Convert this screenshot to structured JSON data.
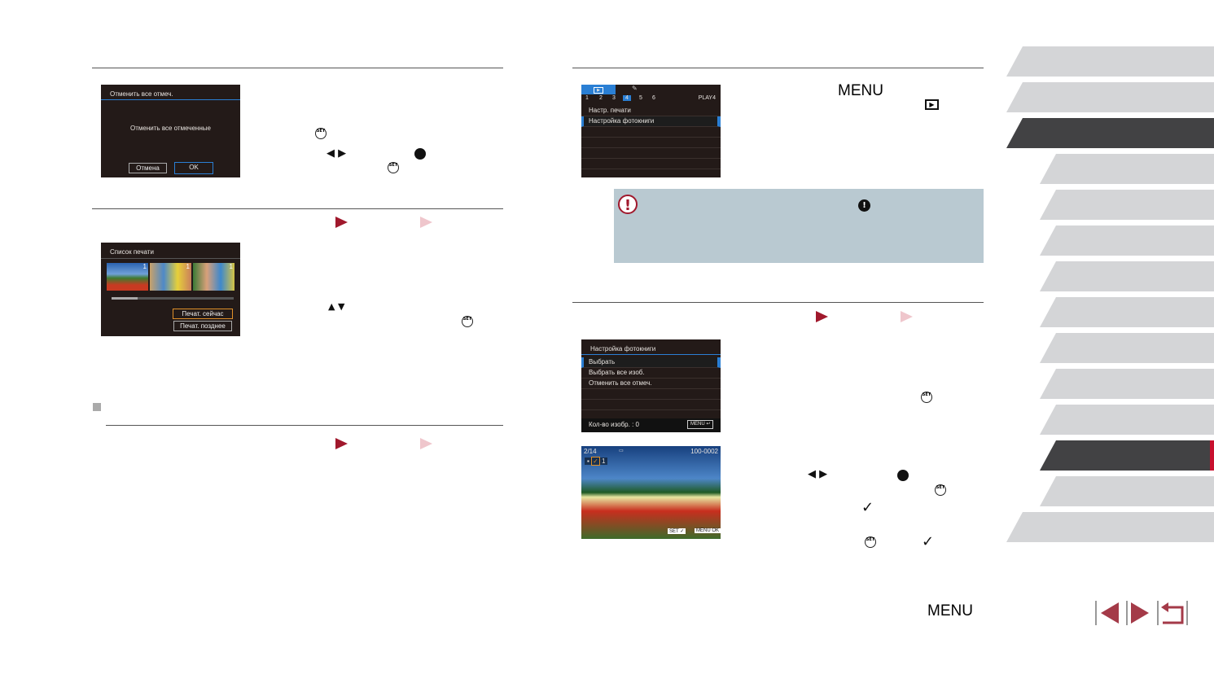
{
  "colors": {
    "accent": "#a0182c",
    "pale_accent": "#efc6cc",
    "note_bg": "#b9c9d1",
    "tab_dark": "#424244",
    "tab_light": "#d4d5d7",
    "screen_bg": "#231a18",
    "screen_highlight": "#2a7fd4"
  },
  "screen1": {
    "title": "Отменить все отмеч.",
    "message": "Отменить все отмеченные",
    "cancel": "Отмена",
    "ok": "OK"
  },
  "screen2": {
    "title": "Список печати",
    "counts": [
      "1",
      "1",
      "1"
    ],
    "print_now": "Печат. сейчас",
    "print_later": "Печат. позднее"
  },
  "screen3": {
    "tabs": [
      "1",
      "2",
      "3",
      "4",
      "5",
      "6"
    ],
    "tab_label": "PLAY4",
    "items": [
      "Настр. печати",
      "Настройка фотокниги"
    ]
  },
  "screen4": {
    "title": "Настройка фотокниги",
    "items": [
      "Выбрать",
      "Выбрать все изоб.",
      "Отменить все отмеч."
    ],
    "count": "Кол-во изобр. : 0",
    "menu_badge": "MENU"
  },
  "screen5": {
    "index": "2/14",
    "file": "100-0002",
    "count": "1",
    "set": "SET",
    "menu": "MENU",
    "ok": "OK"
  },
  "labels": {
    "menu_heading": "MENU",
    "footer_menu": "MENU"
  },
  "icons": [
    "set-button-icon",
    "control-dial-icon",
    "left-right-arrow-icon",
    "up-down-arrow-icon",
    "playback-icon",
    "warning-icon",
    "check-icon",
    "prev-page-icon",
    "next-page-icon",
    "return-icon"
  ]
}
